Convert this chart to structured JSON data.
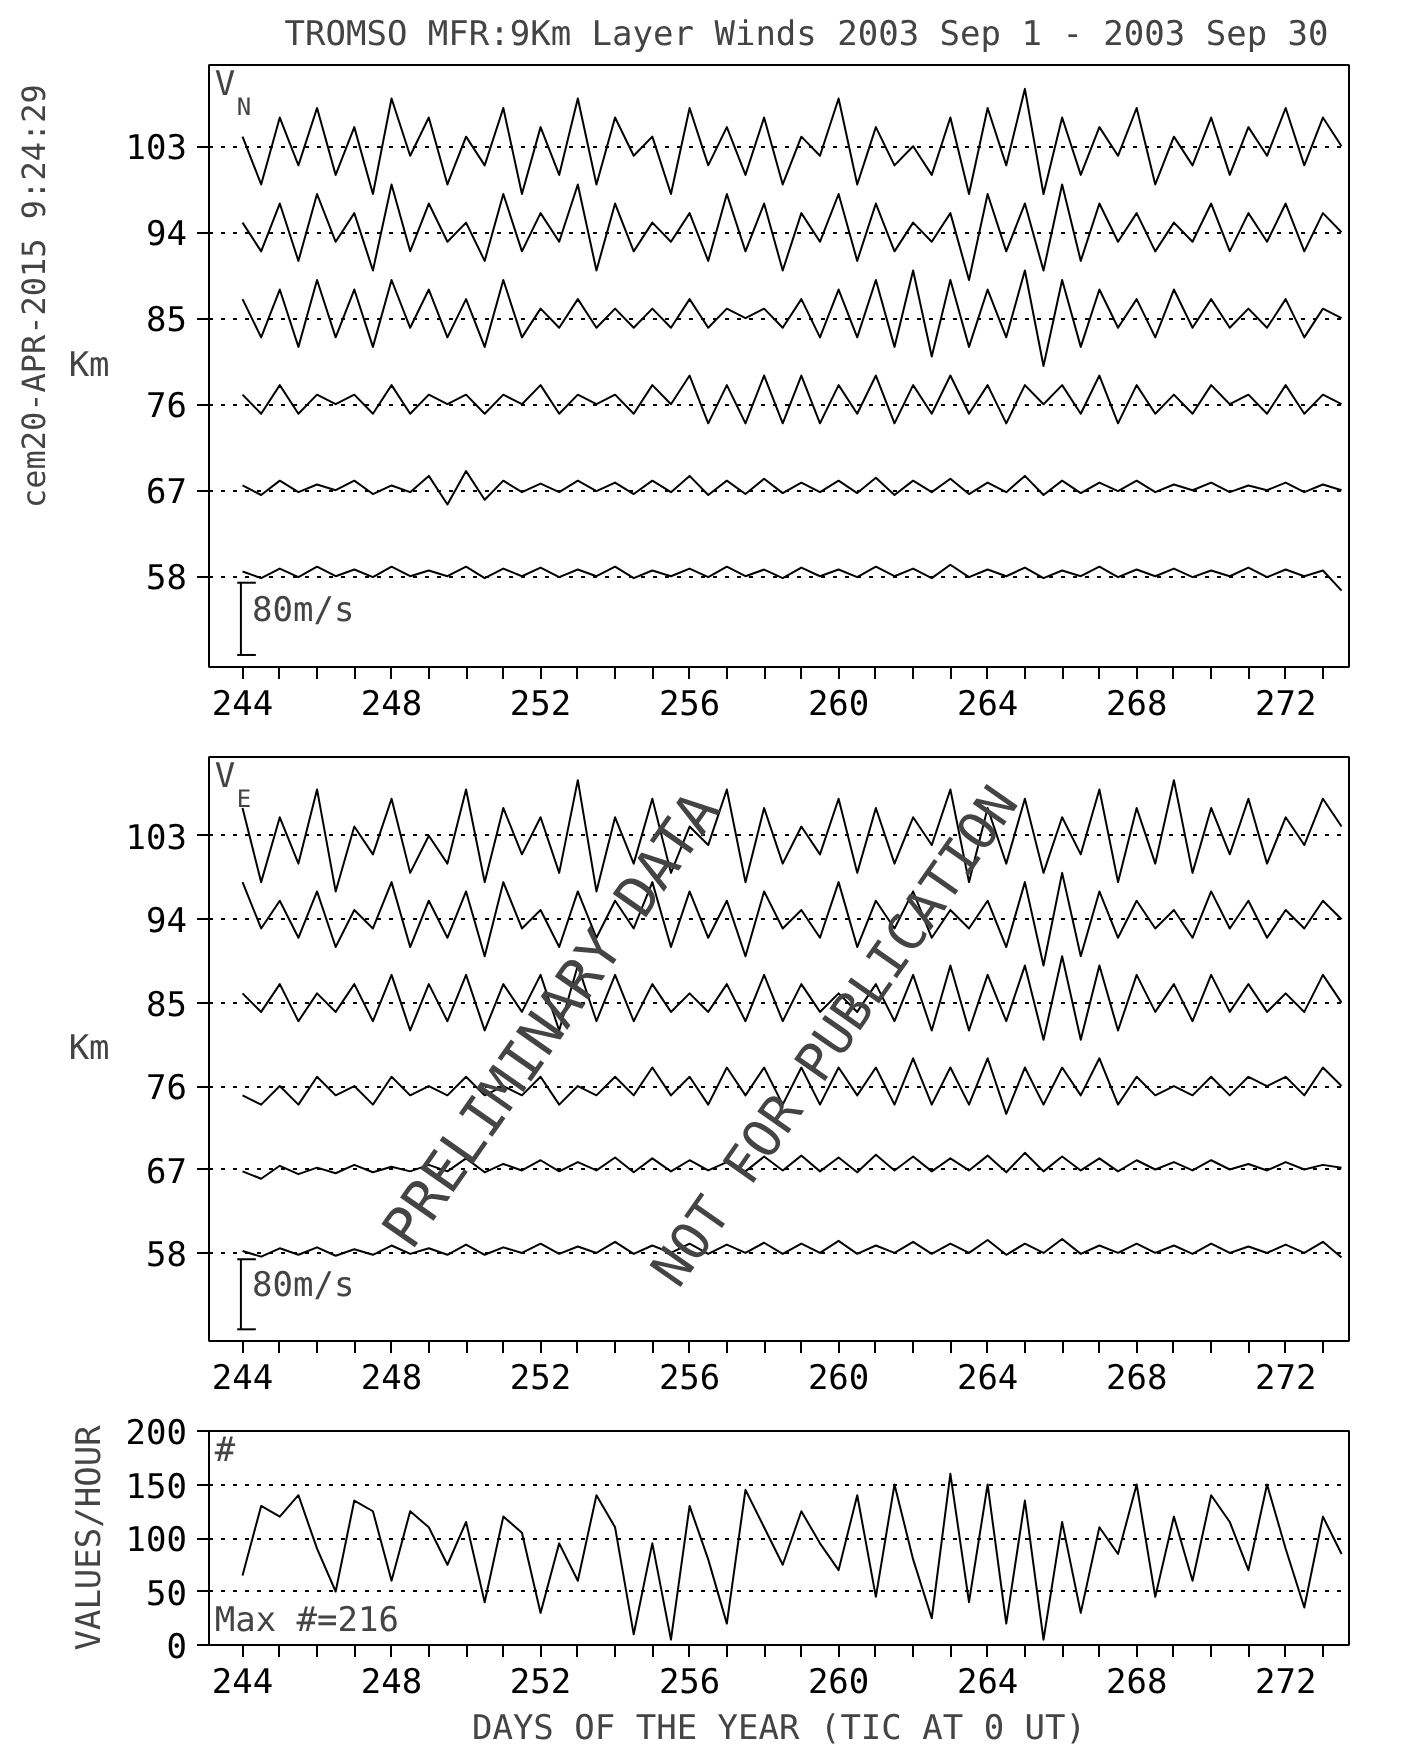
{
  "chart_data": [
    {
      "type": "line",
      "title": "TROMSO MFR:9Km Layer Winds 2003 Sep  1 - 2003 Sep 30",
      "ylabel": "Km",
      "annotations": [
        "V$_{N}$",
        "80m/s",
        "cem20-APR-2015  9:24:29"
      ],
      "x": [
        244,
        244.5,
        245,
        245.5,
        246,
        246.5,
        247,
        247.5,
        248,
        248.5,
        249,
        249.5,
        250,
        250.5,
        251,
        251.5,
        252,
        252.5,
        253,
        253.5,
        254,
        254.5,
        255,
        255.5,
        256,
        256.5,
        257,
        257.5,
        258,
        258.5,
        259,
        259.5,
        260,
        260.5,
        261,
        261.5,
        262,
        262.5,
        263,
        263.5,
        264,
        264.5,
        265,
        265.5,
        266,
        266.5,
        267,
        267.5,
        268,
        268.5,
        269,
        269.5,
        270,
        270.5,
        271,
        271.5,
        272,
        272.5,
        273,
        273.5
      ],
      "series": [
        {
          "color": "#000000",
          "values": [
            104,
            99,
            106,
            101,
            107,
            100,
            105,
            98,
            108,
            102,
            106,
            99,
            104,
            101,
            107,
            98,
            105,
            100,
            108,
            99,
            106,
            102,
            104,
            98,
            107,
            101,
            105,
            100,
            106,
            99,
            104,
            102,
            108,
            99,
            105,
            101,
            103,
            100,
            106,
            98,
            107,
            101,
            109,
            98,
            106,
            100,
            105,
            102,
            107,
            99,
            104,
            101,
            106,
            100,
            105,
            102,
            107,
            101,
            106,
            103
          ]
        },
        {
          "color": "#000000",
          "values": [
            95,
            92,
            97,
            91,
            98,
            93,
            96,
            90,
            99,
            92,
            97,
            93,
            95,
            91,
            98,
            92,
            96,
            93,
            99,
            90,
            97,
            92,
            95,
            93,
            96,
            91,
            98,
            92,
            97,
            90,
            96,
            93,
            98,
            91,
            97,
            92,
            95,
            93,
            96,
            89,
            98,
            92,
            97,
            90,
            99,
            91,
            97,
            93,
            96,
            92,
            95,
            93,
            97,
            92,
            96,
            93,
            97,
            92,
            96,
            94
          ]
        },
        {
          "color": "#000000",
          "values": [
            87,
            83,
            88,
            82,
            89,
            83,
            88,
            82,
            89,
            84,
            88,
            83,
            87,
            82,
            89,
            83,
            86,
            84,
            87,
            84,
            86,
            84,
            86,
            84,
            87,
            84,
            86,
            85,
            86,
            84,
            87,
            83,
            88,
            83,
            89,
            82,
            90,
            81,
            89,
            82,
            88,
            83,
            90,
            80,
            89,
            82,
            88,
            84,
            87,
            83,
            88,
            84,
            87,
            84,
            86,
            84,
            87,
            83,
            86,
            85
          ]
        },
        {
          "color": "#000000",
          "values": [
            77,
            75,
            78,
            75,
            77,
            76,
            77,
            75,
            78,
            75,
            77,
            76,
            77,
            75,
            77,
            76,
            78,
            75,
            77,
            76,
            77,
            75,
            78,
            76,
            79,
            74,
            78,
            74,
            79,
            74,
            79,
            74,
            78,
            75,
            79,
            74,
            78,
            75,
            79,
            75,
            78,
            74,
            78,
            76,
            78,
            75,
            79,
            74,
            78,
            75,
            77,
            75,
            78,
            76,
            77,
            75,
            78,
            75,
            77,
            76
          ]
        },
        {
          "color": "#000000",
          "values": [
            67.5,
            66.5,
            68,
            66.8,
            67.6,
            67,
            68,
            66.6,
            67.5,
            66.8,
            68.5,
            65.5,
            69,
            66,
            68,
            66.8,
            67.7,
            66.8,
            68,
            66.9,
            67.8,
            66.6,
            68,
            66.8,
            68.5,
            66.5,
            68,
            66.6,
            68.2,
            66.7,
            67.8,
            66.8,
            68,
            66.7,
            68.3,
            66.5,
            68,
            66.8,
            68.2,
            66.6,
            67.8,
            66.8,
            68.5,
            66.5,
            68,
            66.7,
            67.8,
            66.9,
            68,
            66.8,
            67.6,
            67,
            67.8,
            66.8,
            67.5,
            67,
            67.8,
            66.8,
            67.6,
            67
          ]
        },
        {
          "color": "#000000",
          "values": [
            58.5,
            57.8,
            58.8,
            57.9,
            59,
            58,
            58.7,
            57.9,
            59,
            58,
            58.6,
            58,
            59,
            57.8,
            58.8,
            58,
            58.9,
            57.9,
            58.7,
            58,
            59,
            57.8,
            58.6,
            58,
            58.8,
            57.9,
            59,
            58,
            58.7,
            57.8,
            58.9,
            58,
            58.7,
            57.9,
            59,
            58,
            58.8,
            57.8,
            59.2,
            57.9,
            58.7,
            58,
            58.9,
            57.8,
            58.6,
            58,
            59,
            57.9,
            58.7,
            58,
            58.8,
            57.9,
            58.6,
            58,
            58.9,
            57.9,
            58.7,
            58,
            58.6,
            56.5
          ]
        }
      ],
      "xlim": [
        243.1,
        273.7
      ],
      "xticks": [
        244,
        {
          "value": 245,
          "label": null
        },
        {
          "value": 246,
          "label": null
        },
        {
          "value": 247,
          "label": null
        },
        248,
        {
          "value": 249,
          "label": null
        },
        {
          "value": 250,
          "label": null
        },
        {
          "value": 251,
          "label": null
        },
        252,
        {
          "value": 253,
          "label": null
        },
        {
          "value": 254,
          "label": null
        },
        {
          "value": 255,
          "label": null
        },
        256,
        {
          "value": 257,
          "label": null
        },
        {
          "value": 258,
          "label": null
        },
        {
          "value": 259,
          "label": null
        },
        260,
        {
          "value": 261,
          "label": null
        },
        {
          "value": 262,
          "label": null
        },
        {
          "value": 263,
          "label": null
        },
        264,
        {
          "value": 265,
          "label": null
        },
        {
          "value": 266,
          "label": null
        },
        {
          "value": 267,
          "label": null
        },
        268,
        {
          "value": 269,
          "label": null
        },
        {
          "value": 270,
          "label": null
        },
        {
          "value": 271,
          "label": null
        },
        272,
        {
          "value": 273,
          "label": null
        }
      ],
      "ylim": [
        48.5,
        111.5
      ],
      "yticks": [
        58,
        67,
        76,
        85,
        94,
        103
      ],
      "grid": "y"
    },
    {
      "type": "line",
      "ylabel": "Km",
      "annotations": [
        "V$_{E}$",
        "80m/s",
        "PRELIMINARY DATA",
        "NOT FOR PUBLICATION"
      ],
      "x": [
        244,
        244.5,
        245,
        245.5,
        246,
        246.5,
        247,
        247.5,
        248,
        248.5,
        249,
        249.5,
        250,
        250.5,
        251,
        251.5,
        252,
        252.5,
        253,
        253.5,
        254,
        254.5,
        255,
        255.5,
        256,
        256.5,
        257,
        257.5,
        258,
        258.5,
        259,
        259.5,
        260,
        260.5,
        261,
        261.5,
        262,
        262.5,
        263,
        263.5,
        264,
        264.5,
        265,
        265.5,
        266,
        266.5,
        267,
        267.5,
        268,
        268.5,
        269,
        269.5,
        270,
        270.5,
        271,
        271.5,
        272,
        272.5,
        273,
        273.5
      ],
      "series": [
        {
          "color": "#000000",
          "values": [
            106,
            98,
            105,
            100,
            108,
            97,
            104,
            101,
            107,
            99,
            103,
            100,
            108,
            98,
            106,
            101,
            105,
            99,
            109,
            97,
            105,
            100,
            107,
            99,
            104,
            102,
            108,
            98,
            106,
            100,
            104,
            101,
            107,
            99,
            106,
            100,
            105,
            102,
            108,
            98,
            106,
            100,
            107,
            99,
            105,
            101,
            108,
            98,
            106,
            100,
            109,
            99,
            106,
            101,
            107,
            100,
            105,
            102,
            107,
            104
          ]
        },
        {
          "color": "#000000",
          "values": [
            98,
            93,
            96,
            92,
            97,
            91,
            95,
            93,
            98,
            91,
            96,
            92,
            97,
            90,
            98,
            93,
            95,
            91,
            97,
            92,
            96,
            93,
            98,
            91,
            97,
            92,
            96,
            90,
            97,
            93,
            95,
            92,
            98,
            91,
            96,
            93,
            97,
            92,
            95,
            93,
            96,
            91,
            98,
            89,
            99,
            90,
            97,
            92,
            96,
            93,
            95,
            92,
            97,
            93,
            96,
            92,
            95,
            93,
            96,
            94
          ]
        },
        {
          "color": "#000000",
          "values": [
            86,
            84,
            87,
            83,
            86,
            84,
            87,
            83,
            88,
            82,
            87,
            83,
            88,
            82,
            87,
            84,
            88,
            82,
            89,
            83,
            88,
            83,
            87,
            84,
            86,
            84,
            87,
            83,
            88,
            83,
            87,
            84,
            86,
            84,
            87,
            83,
            88,
            82,
            89,
            82,
            88,
            83,
            89,
            81,
            90,
            81,
            89,
            82,
            88,
            84,
            87,
            83,
            88,
            84,
            87,
            84,
            86,
            84,
            88,
            85
          ]
        },
        {
          "color": "#000000",
          "values": [
            75,
            74,
            76,
            74,
            77,
            75,
            76,
            74,
            77,
            75,
            76,
            75,
            77,
            75,
            76,
            75,
            77,
            74,
            76,
            75,
            77,
            75,
            78,
            75,
            77,
            74,
            78,
            75,
            78,
            74,
            78,
            74,
            78,
            75,
            78,
            74,
            79,
            74,
            78,
            74,
            79,
            73,
            78,
            74,
            78,
            75,
            79,
            74,
            77,
            75,
            76,
            75,
            77,
            75,
            77,
            76,
            77,
            75,
            78,
            76
          ]
        },
        {
          "color": "#000000",
          "values": [
            66.8,
            66,
            67.4,
            66.5,
            67.2,
            66.6,
            67.5,
            66.7,
            67.3,
            66.8,
            67.5,
            66.8,
            68.2,
            66.7,
            67.6,
            66.9,
            68,
            66.8,
            67.8,
            66.9,
            68.3,
            66.7,
            68.2,
            66.8,
            68,
            66.9,
            67.8,
            66.8,
            68.4,
            66.9,
            68.5,
            66.8,
            68.3,
            66.7,
            68.6,
            66.9,
            68.4,
            66.8,
            68.2,
            66.9,
            68.5,
            66.7,
            68.8,
            66.8,
            68.4,
            66.9,
            68.2,
            66.8,
            68,
            67,
            67.8,
            66.9,
            68,
            67,
            67.6,
            66.9,
            67.8,
            67,
            67.5,
            67.2
          ]
        },
        {
          "color": "#000000",
          "values": [
            58.2,
            57.6,
            58.5,
            57.8,
            58.6,
            57.7,
            58.4,
            57.8,
            58.8,
            57.9,
            58.5,
            57.8,
            58.9,
            57.8,
            58.6,
            58,
            59,
            57.9,
            58.7,
            58,
            59.2,
            57.9,
            58.8,
            58,
            59,
            57.9,
            58.9,
            58,
            59.1,
            57.9,
            59,
            58,
            59.3,
            57.9,
            58.8,
            58,
            59.2,
            57.9,
            59,
            58,
            59.4,
            57.8,
            59,
            58,
            59.5,
            57.9,
            58.8,
            58,
            59,
            58,
            58.8,
            57.9,
            59,
            58,
            58.7,
            58,
            58.9,
            58,
            59.2,
            57.5
          ]
        }
      ],
      "xlim": [
        243.1,
        273.7
      ],
      "xticks": [
        244,
        {
          "value": 245,
          "label": null
        },
        {
          "value": 246,
          "label": null
        },
        {
          "value": 247,
          "label": null
        },
        248,
        {
          "value": 249,
          "label": null
        },
        {
          "value": 250,
          "label": null
        },
        {
          "value": 251,
          "label": null
        },
        252,
        {
          "value": 253,
          "label": null
        },
        {
          "value": 254,
          "label": null
        },
        {
          "value": 255,
          "label": null
        },
        256,
        {
          "value": 257,
          "label": null
        },
        {
          "value": 258,
          "label": null
        },
        {
          "value": 259,
          "label": null
        },
        260,
        {
          "value": 261,
          "label": null
        },
        {
          "value": 262,
          "label": null
        },
        {
          "value": 263,
          "label": null
        },
        264,
        {
          "value": 265,
          "label": null
        },
        {
          "value": 266,
          "label": null
        },
        {
          "value": 267,
          "label": null
        },
        268,
        {
          "value": 269,
          "label": null
        },
        {
          "value": 270,
          "label": null
        },
        {
          "value": 271,
          "label": null
        },
        272,
        {
          "value": 273,
          "label": null
        }
      ],
      "ylim": [
        48.5,
        111.5
      ],
      "yticks": [
        58,
        67,
        76,
        85,
        94,
        103
      ],
      "grid": "y"
    },
    {
      "type": "line",
      "xlabel": "DAYS OF THE YEAR (TIC AT 0 UT)",
      "ylabel": "VALUES/HOUR",
      "annotations": [
        "#",
        "Max #=216"
      ],
      "x": [
        244,
        244.5,
        245,
        245.5,
        246,
        246.5,
        247,
        247.5,
        248,
        248.5,
        249,
        249.5,
        250,
        250.5,
        251,
        251.5,
        252,
        252.5,
        253,
        253.5,
        254,
        254.5,
        255,
        255.5,
        256,
        256.5,
        257,
        257.5,
        258,
        258.5,
        259,
        259.5,
        260,
        260.5,
        261,
        261.5,
        262,
        262.5,
        263,
        263.5,
        264,
        264.5,
        265,
        265.5,
        266,
        266.5,
        267,
        267.5,
        268,
        268.5,
        269,
        269.5,
        270,
        270.5,
        271,
        271.5,
        272,
        272.5,
        273,
        273.5
      ],
      "series": [
        {
          "color": "#000000",
          "values": [
            65,
            130,
            120,
            140,
            90,
            50,
            135,
            125,
            60,
            125,
            110,
            75,
            115,
            40,
            120,
            105,
            30,
            95,
            60,
            140,
            110,
            10,
            95,
            5,
            130,
            80,
            20,
            145,
            110,
            75,
            125,
            95,
            70,
            140,
            45,
            150,
            80,
            25,
            160,
            40,
            150,
            20,
            135,
            5,
            115,
            30,
            110,
            85,
            150,
            45,
            120,
            60,
            140,
            115,
            70,
            150,
            90,
            35,
            120,
            85
          ]
        }
      ],
      "xlim": [
        243.1,
        273.7
      ],
      "xticks": [
        244,
        {
          "value": 245,
          "label": null
        },
        {
          "value": 246,
          "label": null
        },
        {
          "value": 247,
          "label": null
        },
        248,
        {
          "value": 249,
          "label": null
        },
        {
          "value": 250,
          "label": null
        },
        {
          "value": 251,
          "label": null
        },
        252,
        {
          "value": 253,
          "label": null
        },
        {
          "value": 254,
          "label": null
        },
        {
          "value": 255,
          "label": null
        },
        256,
        {
          "value": 257,
          "label": null
        },
        {
          "value": 258,
          "label": null
        },
        {
          "value": 259,
          "label": null
        },
        260,
        {
          "value": 261,
          "label": null
        },
        {
          "value": 262,
          "label": null
        },
        {
          "value": 263,
          "label": null
        },
        264,
        {
          "value": 265,
          "label": null
        },
        {
          "value": 266,
          "label": null
        },
        {
          "value": 267,
          "label": null
        },
        268,
        {
          "value": 269,
          "label": null
        },
        {
          "value": 270,
          "label": null
        },
        {
          "value": 271,
          "label": null
        },
        272,
        {
          "value": 273,
          "label": null
        }
      ],
      "ylim": [
        0,
        200
      ],
      "yticks": [
        0,
        50,
        100,
        150,
        200
      ],
      "grid": "y"
    }
  ]
}
